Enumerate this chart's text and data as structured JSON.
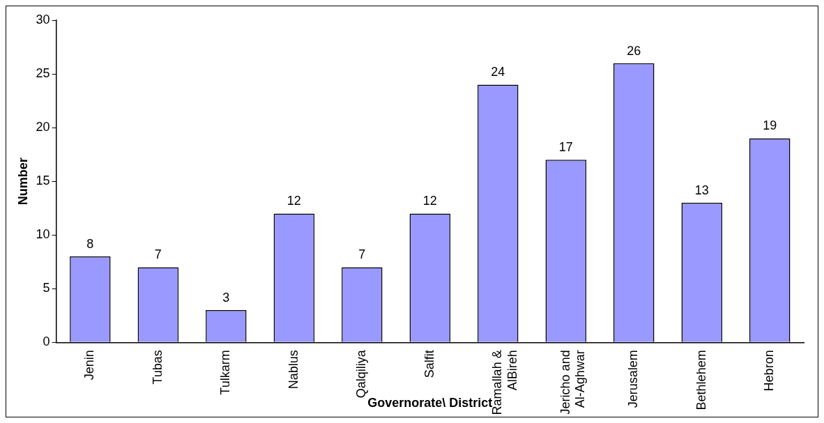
{
  "chart_data": {
    "type": "bar",
    "xlabel": "Governorate\\ District",
    "ylabel": "Number",
    "categories": [
      "Jenin",
      "Tubas",
      "Tulkarm",
      "Nablus",
      "Qalqiliya",
      "Salfit",
      "Ramallah & AlBireh",
      "Jericho and Al-Aghwar",
      "Jerusalem",
      "Bethlehem",
      "Hebron"
    ],
    "values": [
      8,
      7,
      3,
      12,
      7,
      12,
      24,
      17,
      26,
      13,
      19
    ],
    "color": "#9999ff",
    "ylim": [
      0,
      30
    ],
    "yticks": [
      0,
      5,
      10,
      15,
      20,
      25,
      30
    ],
    "grid": false,
    "legend": false,
    "data_labels": true
  }
}
